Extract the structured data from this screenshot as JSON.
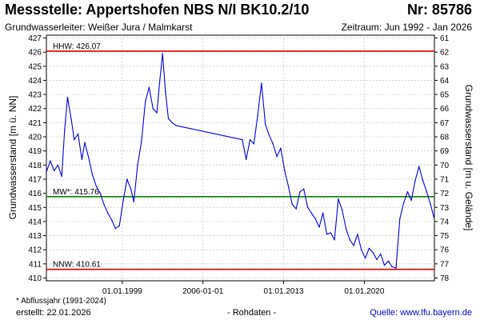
{
  "header": {
    "title": "Messstelle: Appertshofen NBS N/I BK10.2/10",
    "station_nr": "Nr: 85786",
    "aquifer": "Grundwasserleiter:  Weißer Jura / Malmkarst",
    "period": "Zeitraum: Jun 1992 - Jan 2026"
  },
  "footer": {
    "footnote": "* Abflussjahr (1991-2024)",
    "created": "erstellt:  22.01.2026",
    "data_type": "- Rohdaten -",
    "source": "Quelle:  www.lfu.bayern.de"
  },
  "colors": {
    "series": "#0000dd",
    "extreme_lines": "#dd0000",
    "mean_line": "#008800",
    "grid": "#cccccc"
  },
  "chart_data": {
    "type": "line",
    "ylabel": "Grundwasserstand [m ü. NN]",
    "ylabel_right": "Grundwasserstand [m u. Gelände]",
    "ylim": [
      409.8,
      427.2
    ],
    "yticks": [
      410,
      411,
      412,
      413,
      414,
      415,
      416,
      417,
      418,
      419,
      420,
      421,
      422,
      423,
      424,
      425,
      426,
      427
    ],
    "yticks_right": [
      61,
      62,
      63,
      64,
      65,
      66,
      67,
      68,
      69,
      70,
      71,
      72,
      73,
      74,
      75,
      76,
      77,
      78
    ],
    "right_axis_ground_level": 488,
    "xlim": [
      "1992-06-01",
      "2026-01-31"
    ],
    "xticks": [
      "1999-01-01",
      "2006-01-01",
      "2013-01-01",
      "2020-01-01"
    ],
    "xtick_labels": [
      "01.01.1999",
      "2006-01-01",
      "01.01.2013",
      "01.01.2020"
    ],
    "grid": true,
    "reference_lines": [
      {
        "label": "HHW: 426.07",
        "value": 426.07,
        "color": "#dd0000"
      },
      {
        "label": "MW*: 415.76",
        "value": 415.76,
        "color": "#008800"
      },
      {
        "label": "NNW: 410.61",
        "value": 410.61,
        "color": "#dd0000"
      }
    ],
    "series": [
      {
        "x": [
          "1992-06-01",
          "1992-10-01",
          "1993-02-01",
          "1993-06-01",
          "1993-10-01",
          "1994-01-01",
          "1994-04-01",
          "1994-08-01",
          "1994-11-01",
          "1995-03-01",
          "1995-07-01",
          "1995-10-01",
          "1996-02-01",
          "1996-06-01",
          "1996-10-01",
          "1997-02-01",
          "1997-06-01",
          "1997-10-01",
          "1998-02-01",
          "1998-06-01",
          "1998-10-01",
          "1999-02-01",
          "1999-06-01",
          "1999-10-01",
          "2000-01-01",
          "2000-05-01",
          "2000-09-01",
          "2001-01-01",
          "2001-05-01",
          "2001-09-01",
          "2002-01-01",
          "2002-04-01",
          "2002-07-01",
          "2002-10-01",
          "2003-01-01",
          "2003-05-01",
          "2003-09-01",
          "2009-06-01",
          "2009-10-01",
          "2010-02-01",
          "2010-06-01",
          "2010-10-01",
          "2011-02-01",
          "2011-06-01",
          "2011-10-01",
          "2012-02-01",
          "2012-06-01",
          "2012-10-01",
          "2013-02-01",
          "2013-06-01",
          "2013-10-01",
          "2014-02-01",
          "2014-06-01",
          "2014-10-01",
          "2015-02-01",
          "2015-06-01",
          "2015-10-01",
          "2016-02-01",
          "2016-06-01",
          "2016-10-01",
          "2017-02-01",
          "2017-06-01",
          "2017-10-01",
          "2018-02-01",
          "2018-06-01",
          "2018-10-01",
          "2019-02-01",
          "2019-06-01",
          "2019-10-01",
          "2020-02-01",
          "2020-06-01",
          "2020-10-01",
          "2021-02-01",
          "2021-06-01",
          "2021-10-01",
          "2022-02-01",
          "2022-06-01",
          "2022-10-01",
          "2023-02-01",
          "2023-06-01",
          "2023-10-01",
          "2024-02-01",
          "2024-06-01",
          "2024-10-01",
          "2025-02-01",
          "2025-06-01",
          "2025-10-01",
          "2026-01-15"
        ],
        "y": [
          417.5,
          418.3,
          417.6,
          418.0,
          417.2,
          420.5,
          422.8,
          421.2,
          419.8,
          420.2,
          418.4,
          419.6,
          418.5,
          417.3,
          416.5,
          416.0,
          415.2,
          414.6,
          414.1,
          413.5,
          413.7,
          415.5,
          417.0,
          416.3,
          415.4,
          418.0,
          419.7,
          422.5,
          423.5,
          422.0,
          421.7,
          423.9,
          425.9,
          423.2,
          421.3,
          421.0,
          420.8,
          419.8,
          418.4,
          419.8,
          419.5,
          421.5,
          423.8,
          420.9,
          420.1,
          419.5,
          418.6,
          419.2,
          417.6,
          416.5,
          415.2,
          414.9,
          416.1,
          416.3,
          415.0,
          414.6,
          414.2,
          413.6,
          414.6,
          413.1,
          413.2,
          412.7,
          415.6,
          414.8,
          413.5,
          412.7,
          412.3,
          413.1,
          412.0,
          411.4,
          412.1,
          411.8,
          411.3,
          411.7,
          410.9,
          411.2,
          410.8,
          410.7,
          414.2,
          415.3,
          416.1,
          415.5,
          416.9,
          417.9,
          416.9,
          416.1,
          415.2,
          414.3
        ]
      }
    ]
  }
}
